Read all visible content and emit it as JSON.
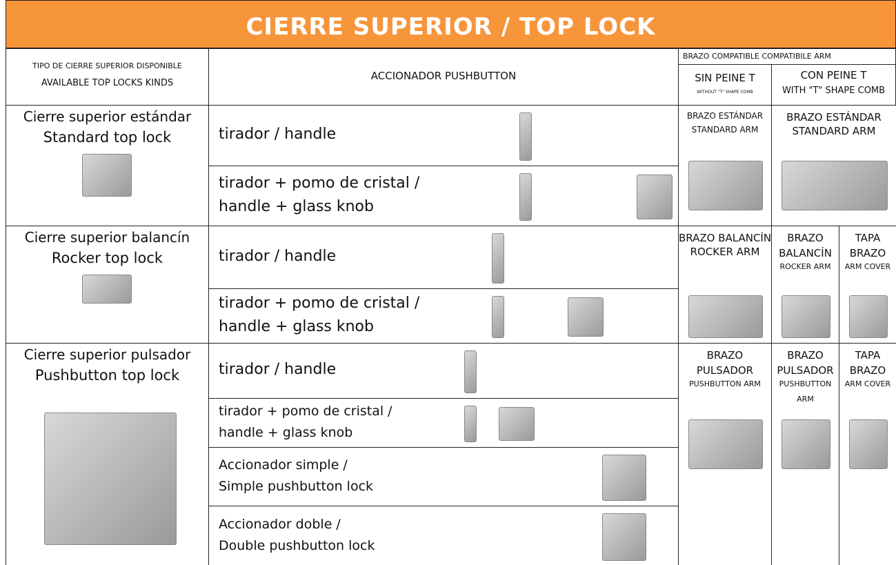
{
  "title": "CIERRE SUPERIOR / TOP LOCK",
  "header": {
    "kinds": [
      "TIPO DE CIERRE SUPERIOR DISPONIBLE",
      "AVAILABLE TOP LOCKS KINDS"
    ],
    "actuator": "ACCIONADOR  PUSHBUTTON",
    "arm_title": "BRAZO COMPATIBLE  COMPATIBILE ARM",
    "without_comb": [
      "SIN PEINE T",
      "WITHOUT \"T\" SHAPE COMB"
    ],
    "with_comb": [
      "CON PEINE T",
      "WITH \"T\" SHAPE COMB"
    ]
  },
  "groups": [
    {
      "lock": [
        "Cierre superior estándar",
        "Standard top lock"
      ],
      "options": [
        [
          "tirador / handle"
        ],
        [
          "tirador + pomo de cristal /",
          "handle + glass knob"
        ]
      ],
      "arms": [
        [
          "BRAZO ESTÁNDAR",
          "STANDARD ARM"
        ],
        [
          "BRAZO ESTÁNDAR",
          "STANDARD ARM"
        ]
      ]
    },
    {
      "lock": [
        "Cierre superior balancín",
        "Rocker top lock"
      ],
      "options": [
        [
          "tirador / handle"
        ],
        [
          "tirador + pomo de cristal /",
          "handle + glass knob"
        ]
      ],
      "arms": [
        [
          "BRAZO BALANCÍN",
          "ROCKER ARM"
        ],
        [
          "BRAZO",
          "BALANCÍN",
          "ROCKER ARM"
        ],
        [
          "TAPA",
          "BRAZO",
          "ARM COVER"
        ]
      ]
    },
    {
      "lock": [
        "Cierre superior pulsador",
        "Pushbutton top lock"
      ],
      "options": [
        [
          "tirador / handle"
        ],
        [
          "tirador + pomo de cristal /",
          "handle + glass knob"
        ],
        [
          "Accionador simple /",
          "Simple pushbutton lock"
        ],
        [
          "Accionador doble /",
          "Double pushbutton lock"
        ]
      ],
      "arms": [
        [
          "BRAZO",
          "PULSADOR",
          "PUSHBUTTON ARM"
        ],
        [
          "BRAZO",
          "PULSADOR",
          "PUSHBUTTON",
          "ARM"
        ],
        [
          "TAPA",
          "BRAZO",
          "ARM COVER"
        ]
      ]
    }
  ]
}
